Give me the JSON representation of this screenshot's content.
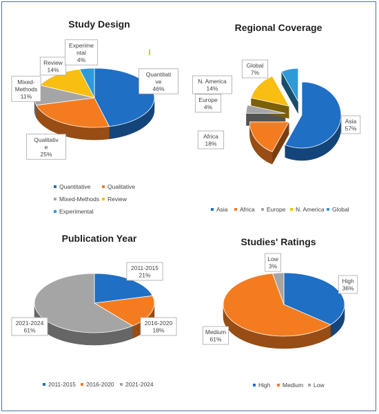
{
  "colors": {
    "blue": "#1F6FC4",
    "orange": "#F47C20",
    "gray": "#A5A5A5",
    "gold": "#F8BE12",
    "lightblue": "#2E9AD8"
  },
  "chart_data": [
    {
      "type": "pie",
      "title": "Study Design",
      "categories": [
        "Quantitative",
        "Qualitative",
        "Mixed-Methods",
        "Review",
        "Experimental"
      ],
      "values": [
        46,
        25,
        11,
        14,
        4
      ],
      "data_labels": [
        [
          "Quantitati",
          "ve",
          "46%"
        ],
        [
          "Qualitativ",
          "e",
          "25%"
        ],
        [
          "Mixed-",
          "Methods",
          "11%"
        ],
        [
          "Review",
          "14%"
        ],
        [
          "Experime",
          "ntal",
          "4%"
        ]
      ],
      "legend": [
        "Quantitative",
        "Qualitative",
        "Mixed-Methods",
        "Review",
        "Experimental"
      ],
      "legend_position": "bottom",
      "colors": [
        "#1F6FC4",
        "#F47C20",
        "#A5A5A5",
        "#F8BE12",
        "#2E9AD8"
      ],
      "style": "3d"
    },
    {
      "type": "pie",
      "title": "Regional Coverage",
      "categories": [
        "Asia",
        "Africa",
        "Europe",
        "N. America",
        "Global"
      ],
      "values": [
        57,
        18,
        4,
        14,
        7
      ],
      "data_labels": [
        [
          "Asia",
          "57%"
        ],
        [
          "Africa",
          "18%"
        ],
        [
          "Europe",
          "4%"
        ],
        [
          "N. America",
          "14%"
        ],
        [
          "Global",
          "7%"
        ]
      ],
      "legend": [
        "Asia",
        "Africa",
        "Europe",
        "N. America",
        "Global"
      ],
      "legend_position": "bottom",
      "colors": [
        "#1F6FC4",
        "#F47C20",
        "#A5A5A5",
        "#F8BE12",
        "#2E9AD8"
      ],
      "style": "3d exploded"
    },
    {
      "type": "pie",
      "title": "Publication Year",
      "categories": [
        "2011-2015",
        "2016-2020",
        "2021-2024"
      ],
      "values": [
        21,
        18,
        61
      ],
      "data_labels": [
        [
          "2011-2015",
          "21%"
        ],
        [
          "2016-2020",
          "18%"
        ],
        [
          "2021-2024",
          "61%"
        ]
      ],
      "legend": [
        "2011-2015",
        "2016-2020",
        "2021-2024"
      ],
      "legend_position": "bottom",
      "colors": [
        "#1F6FC4",
        "#F47C20",
        "#A5A5A5"
      ],
      "style": "3d"
    },
    {
      "type": "pie",
      "title": "Studies' Ratings",
      "categories": [
        "High",
        "Medium",
        "Low"
      ],
      "values": [
        36,
        61,
        3
      ],
      "data_labels": [
        [
          "High",
          "36%"
        ],
        [
          "Medium",
          "61%"
        ],
        [
          "Low",
          "3%"
        ]
      ],
      "legend": [
        "High",
        "Medium",
        "Low"
      ],
      "legend_position": "bottom",
      "colors": [
        "#1F6FC4",
        "#F47C20",
        "#A5A5A5"
      ],
      "style": "3d"
    }
  ]
}
